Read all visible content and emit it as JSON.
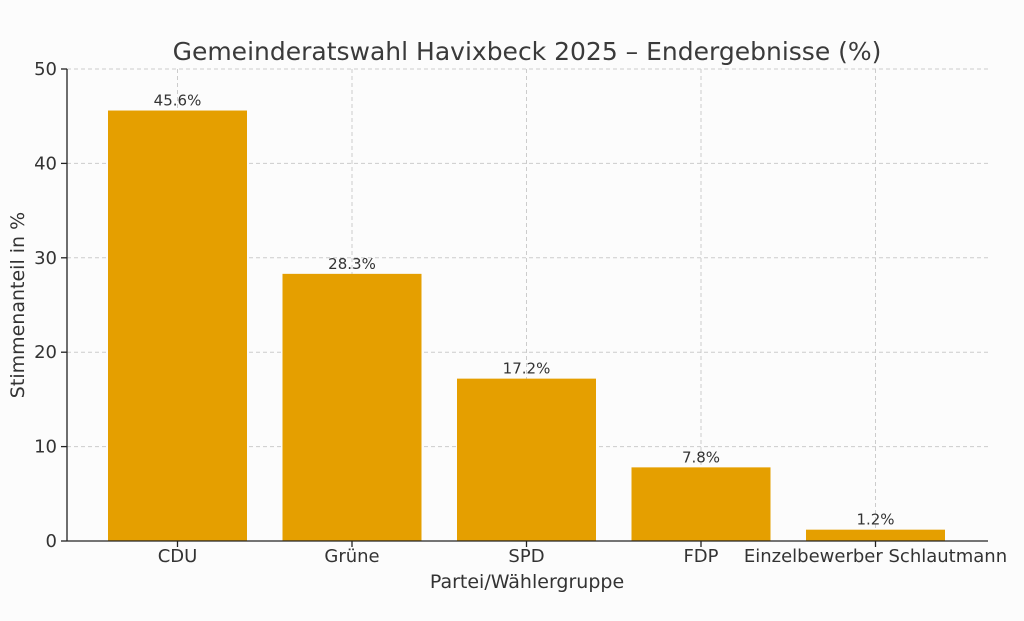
{
  "chart_data": {
    "type": "bar",
    "title": "Gemeinderatswahl Havixbeck 2025 – Endergebnisse (%)",
    "xlabel": "Partei/Wählergruppe",
    "ylabel": "Stimmenanteil in %",
    "categories": [
      "CDU",
      "Grüne",
      "SPD",
      "FDP",
      "Einzelbewerber Schlautmann"
    ],
    "values": [
      45.6,
      28.3,
      17.2,
      7.8,
      1.2
    ],
    "data_labels": [
      "45.6%",
      "28.3%",
      "17.2%",
      "7.8%",
      "1.2%"
    ],
    "ylim": [
      0,
      50
    ],
    "yticks": [
      0,
      10,
      20,
      30,
      40,
      50
    ],
    "grid": true,
    "colors": {
      "bar": "#E59F00"
    }
  }
}
